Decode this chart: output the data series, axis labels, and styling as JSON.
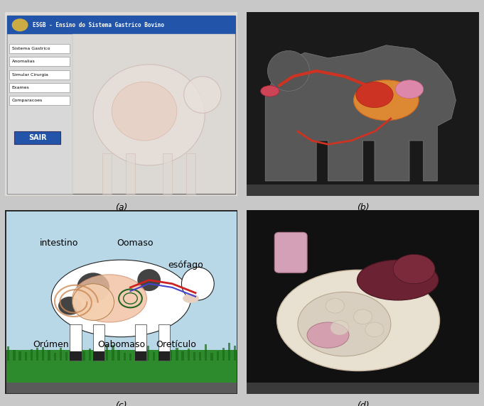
{
  "figure_bg": "#c8c8c8",
  "caption_a": "(a)",
  "caption_b": "(b)",
  "caption_c": "(c)",
  "caption_d": "(d)",
  "panel_a": {
    "bg": "#d0d0d0",
    "title_bar_color": "#2255aa",
    "title_text": "ESGB - Ensino do Sistema Gastrico Bovino",
    "title_text_color": "#000000",
    "menu_items": [
      "Sistema Gastrico",
      "Anomalias",
      "Simular Cirurgia",
      "Exames",
      "Comparacoes"
    ],
    "menu_bg": "#c0c0c0",
    "menu_text_color": "#000000",
    "sair_bg": "#2255aa",
    "sair_text": "SAIR",
    "sair_text_color": "#ffffff",
    "cow_bg": "#e8e4e0",
    "inner_bg": "#e0dcd8"
  },
  "panel_b": {
    "bg": "#1a1a1a",
    "cow_body_color": "#606060",
    "organ_color": "#cc4422",
    "organ2_color": "#dd8833",
    "organ3_color": "#dd88aa"
  },
  "panel_c": {
    "bg": "#a8d4e8",
    "border_color": "#222222",
    "labels": [
      "intestino",
      "Oomaso",
      "esófago",
      "Orúmen",
      "Oabomaso",
      "Oretículo"
    ],
    "grass_color": "#2d8a2d",
    "cow_body": "#f5c8a0"
  },
  "panel_d": {
    "bg": "#111111",
    "organ_main": "#e8e0d4",
    "organ_dark": "#6b2233",
    "organ_pink": "#d4a0b0"
  }
}
